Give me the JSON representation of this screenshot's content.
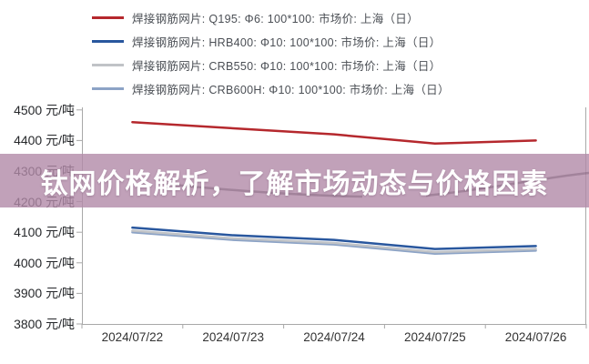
{
  "banner": {
    "text": "钛网价格解析，了解市场动态与价格因素",
    "bg": "rgba(178,138,168,0.8)",
    "text_color": "#ffffff"
  },
  "chart_data": {
    "type": "line",
    "x": [
      "2024/07/22",
      "2024/07/23",
      "2024/07/24",
      "2024/07/25",
      "2024/07/26"
    ],
    "y_axis_unit": "元/吨",
    "y_ticks": [
      4500,
      4400,
      4300,
      4200,
      4100,
      4000,
      3900,
      3800
    ],
    "ylim": [
      3800,
      4550
    ],
    "grid": false,
    "legend_position": "top-left",
    "axis_color": "#a8a8a8",
    "series": [
      {
        "name": "焊接钢筋网片: Q195: Φ6: 100*100: 市场价: 上海（日）",
        "color": "#b5282d",
        "values": [
          4460,
          4440,
          4420,
          4390,
          4400
        ]
      },
      {
        "name": "焊接钢筋网片: HRB400: Φ10: 100*100: 市场价: 上海（日）",
        "color": "#29579e",
        "values": [
          4115,
          4090,
          4075,
          4045,
          4055
        ]
      },
      {
        "name": "焊接钢筋网片: CRB550: Φ10: 100*100: 市场价: 上海（日）",
        "color": "#c0c3c7",
        "values": [
          4105,
          4080,
          4065,
          4035,
          4045
        ]
      },
      {
        "name": "焊接钢筋网片: CRB600H: Φ10: 100*100: 市场价: 上海（日）",
        "color": "#8ca3c6",
        "values": [
          4100,
          4075,
          4060,
          4030,
          4040
        ]
      }
    ]
  }
}
